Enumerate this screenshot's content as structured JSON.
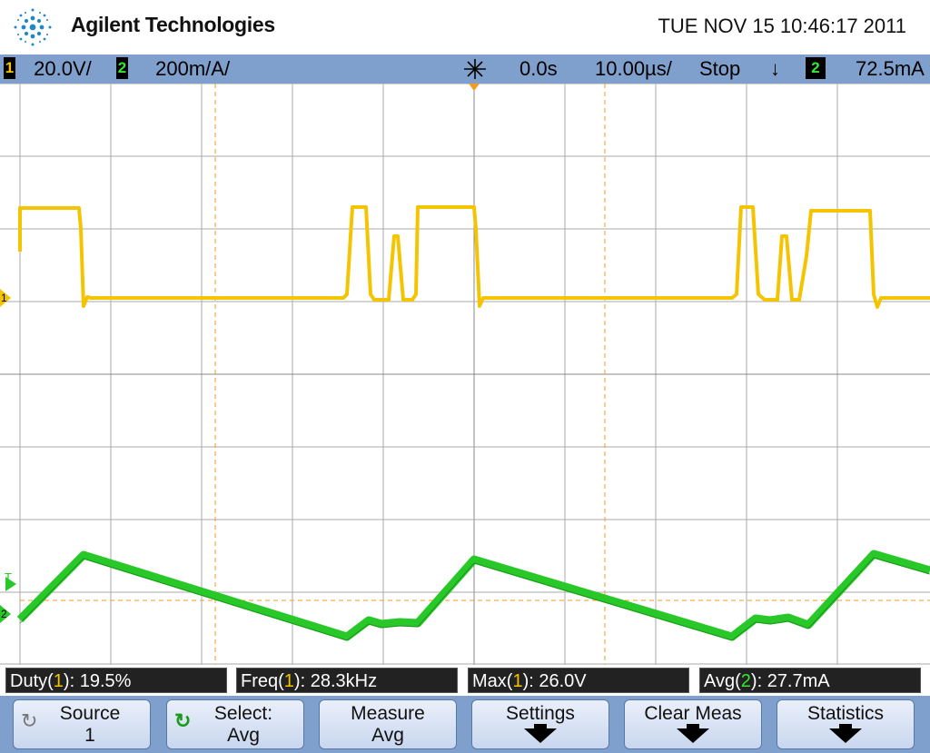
{
  "header": {
    "brand": "Agilent Technologies",
    "datetime": "TUE NOV 15 10:46:17 2011"
  },
  "status": {
    "ch1_num": "1",
    "ch1_scale": "20.0V/",
    "ch2_num": "2",
    "ch2_scale": "200m/A/",
    "delay": "0.0s",
    "timebase": "10.00µs/",
    "run_state": "Stop",
    "trigger_slope": "↓",
    "trigger_source": "2",
    "trigger_level": "72.5mA"
  },
  "markers": {
    "ch1": "1",
    "trig": "T",
    "ch2": "2"
  },
  "measurements": [
    {
      "name": "Duty",
      "src": "1",
      "value": "19.5%"
    },
    {
      "name": "Freq",
      "src": "1",
      "value": "28.3kHz"
    },
    {
      "name": "Max",
      "src": "1",
      "value": "26.0V"
    },
    {
      "name": "Avg",
      "src": "2",
      "value": "27.7mA"
    }
  ],
  "softkeys": [
    {
      "line1": "Source",
      "line2": "1",
      "icon": "rotate-icon"
    },
    {
      "line1": "Select:",
      "line2": "Avg",
      "icon": "select-rotate-icon"
    },
    {
      "line1": "Measure",
      "line2": "Avg"
    },
    {
      "line1": "Settings",
      "line2": ""
    },
    {
      "line1": "Clear Meas",
      "line2": ""
    },
    {
      "line1": "Statistics",
      "line2": ""
    }
  ],
  "colors": {
    "ch1": "#f5c400",
    "ch2": "#34e834",
    "grid": "#aaaaaa",
    "cursor": "#f59a23"
  }
}
